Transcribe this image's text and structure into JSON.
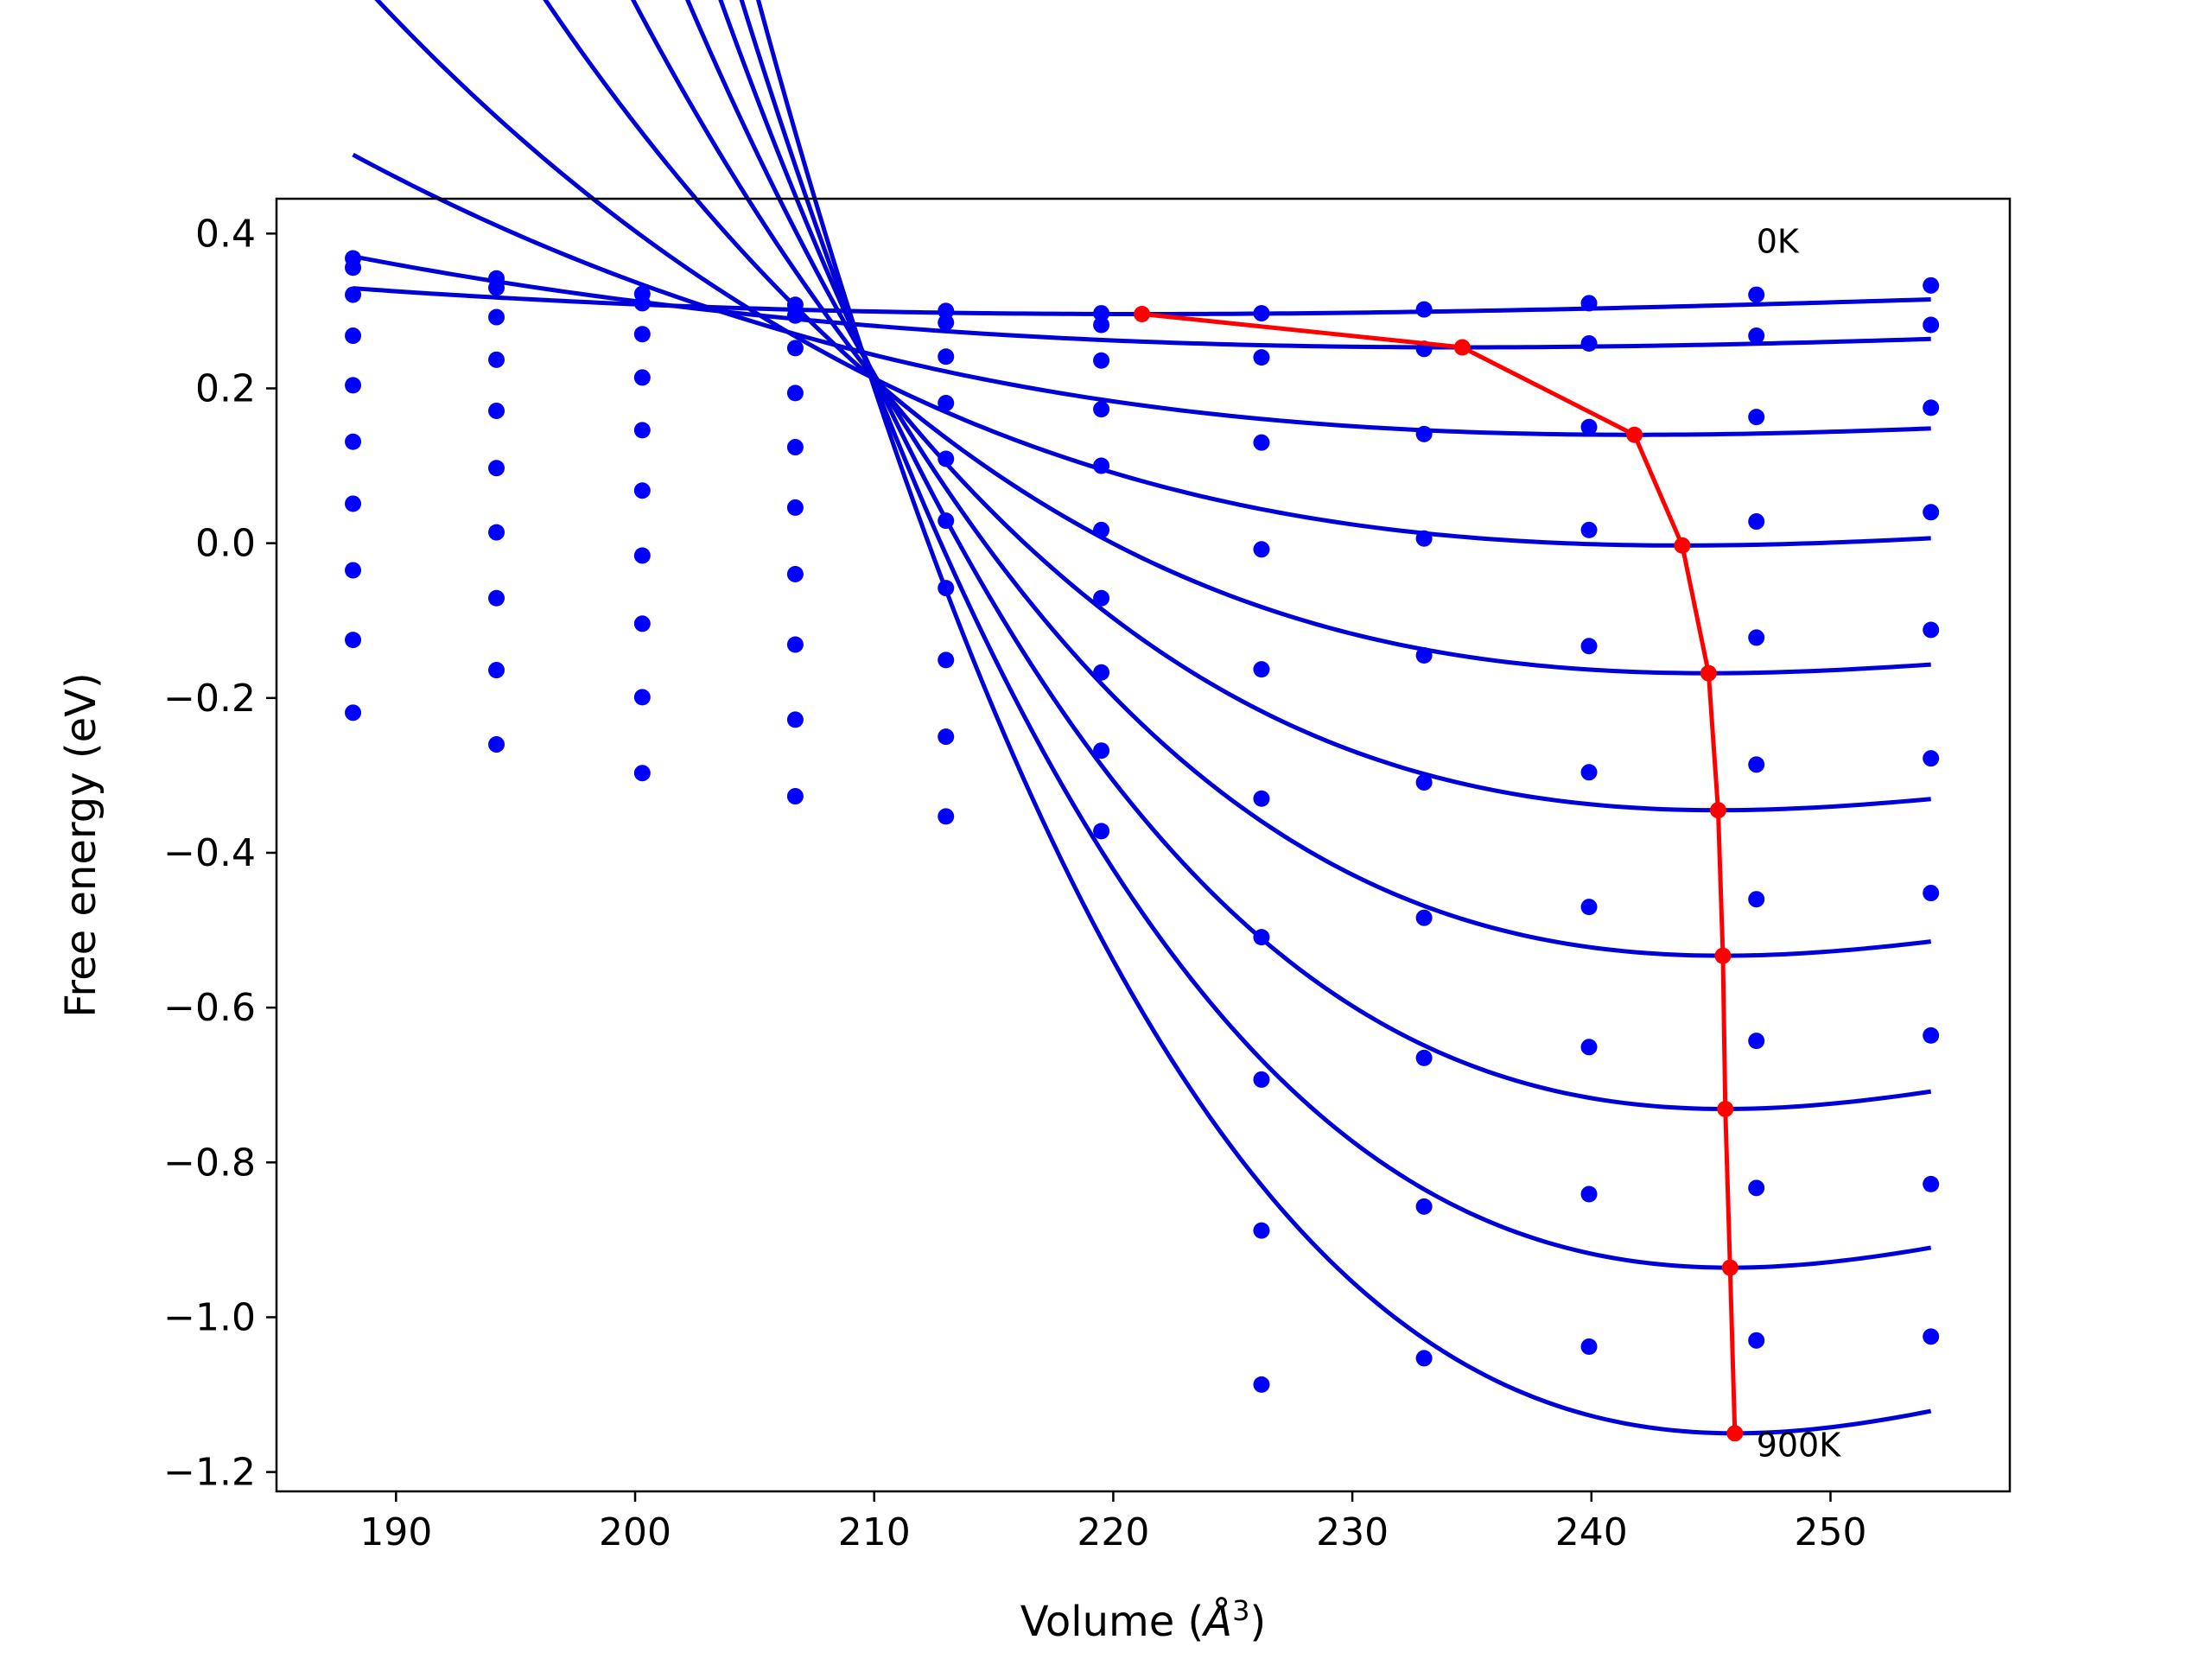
{
  "chart_data": {
    "type": "scatter",
    "title": "",
    "xlabel_prefix": "Volume (",
    "xlabel_unit_base": "Å",
    "xlabel_unit_exp": "3",
    "xlabel_suffix": ")",
    "ylabel": "Free energy (eV)",
    "xlim": [
      185,
      257.5
    ],
    "ylim": [
      -1.225,
      0.445
    ],
    "xticks": [
      190,
      200,
      210,
      220,
      230,
      240,
      250
    ],
    "yticks": [
      0.4,
      0.2,
      0.0,
      -0.2,
      -0.4,
      -0.6,
      -0.8,
      -1.0,
      -1.2
    ],
    "xtick_labels": [
      "190",
      "200",
      "210",
      "220",
      "230",
      "240",
      "250"
    ],
    "ytick_labels": [
      "0.4",
      "0.2",
      "0.0",
      "−0.2",
      "−0.4",
      "−0.6",
      "−0.8",
      "−1.0",
      "−1.2"
    ],
    "grid": false,
    "annotations": [
      {
        "text": "0K",
        "x": 246.9,
        "y": 0.39
      },
      {
        "text": "900K",
        "x": 246.9,
        "y": -1.165
      }
    ],
    "colors": {
      "points": "#0000ff",
      "fit": "#0000d8",
      "minima": "#ff0000"
    },
    "volumes": [
      188.2,
      194.2,
      200.3,
      206.7,
      213.0,
      219.5,
      226.2,
      233.0,
      239.9,
      246.9,
      254.2
    ],
    "series": [
      {
        "points": [
          0.368,
          0.342,
          0.322,
          0.308,
          0.3,
          0.297,
          0.297,
          0.302,
          0.31,
          0.321,
          0.333
        ],
        "fit": {
          "x0": 221.2,
          "e0": 0.296,
          "b": 2.4e-05,
          "c": 2e-07
        }
      },
      {
        "points": [
          0.356,
          0.33,
          0.31,
          0.294,
          0.285,
          0.282,
          0.24,
          0.251,
          0.258,
          0.268,
          0.282
        ],
        "fit": {
          "x0": 234.6,
          "e0": 0.253,
          "b": 3.6e-05,
          "c": 4e-07
        }
      },
      {
        "points": [
          0.321,
          0.292,
          0.27,
          0.252,
          0.241,
          0.236,
          0.13,
          0.141,
          0.15,
          0.163,
          0.175
        ],
        "fit": {
          "x0": 241.8,
          "e0": 0.14,
          "b": 6.7e-05,
          "c": 1.1e-06
        }
      },
      {
        "points": [
          0.268,
          0.237,
          0.214,
          0.194,
          0.181,
          0.173,
          -0.008,
          0.006,
          0.017,
          0.028,
          0.04
        ],
        "fit": {
          "x0": 243.8,
          "e0": -0.003,
          "b": 0.000111,
          "c": 2.3e-06
        }
      },
      {
        "points": [
          0.204,
          0.171,
          0.146,
          0.124,
          0.109,
          0.1,
          -0.163,
          -0.145,
          -0.133,
          -0.122,
          -0.112
        ],
        "fit": {
          "x0": 244.9,
          "e0": -0.168,
          "b": 0.000168,
          "c": 4.1e-06
        }
      },
      {
        "points": [
          0.131,
          0.097,
          0.068,
          0.046,
          0.029,
          0.017,
          -0.33,
          -0.309,
          -0.296,
          -0.286,
          -0.278
        ],
        "fit": {
          "x0": 245.3,
          "e0": -0.345,
          "b": 0.000236,
          "c": 6e-06
        }
      },
      {
        "points": [
          0.051,
          0.014,
          -0.016,
          -0.04,
          -0.058,
          -0.071,
          -0.509,
          -0.484,
          -0.47,
          -0.46,
          -0.452
        ],
        "fit": {
          "x0": 245.5,
          "e0": -0.533,
          "b": 0.000312,
          "c": 8e-06
        }
      },
      {
        "points": [
          -0.035,
          -0.071,
          -0.104,
          -0.131,
          -0.151,
          -0.167,
          -0.693,
          -0.665,
          -0.651,
          -0.643,
          -0.636
        ],
        "fit": {
          "x0": 245.6,
          "e0": -0.731,
          "b": 0.000391,
          "c": 1e-05
        }
      },
      {
        "points": [
          -0.125,
          -0.164,
          -0.199,
          -0.228,
          -0.25,
          -0.268,
          -0.888,
          -0.857,
          -0.841,
          -0.833,
          -0.828
        ],
        "fit": {
          "x0": 245.8,
          "e0": -0.936,
          "b": 0.000466,
          "c": 1.19e-05
        }
      },
      {
        "points": [
          -0.219,
          -0.26,
          -0.297,
          -0.327,
          -0.353,
          -0.372,
          -1.087,
          -1.053,
          -1.038,
          -1.03,
          -1.025
        ],
        "fit": {
          "x0": 246.0,
          "e0": -1.15,
          "b": 0.000542,
          "c": 1.39e-05
        }
      }
    ],
    "minima": {
      "x": [
        221.2,
        234.6,
        241.8,
        243.8,
        244.9,
        245.3,
        245.5,
        245.6,
        245.8,
        246.0
      ],
      "y": [
        0.296,
        0.253,
        0.14,
        -0.003,
        -0.168,
        -0.345,
        -0.533,
        -0.731,
        -0.936,
        -1.15
      ]
    }
  }
}
